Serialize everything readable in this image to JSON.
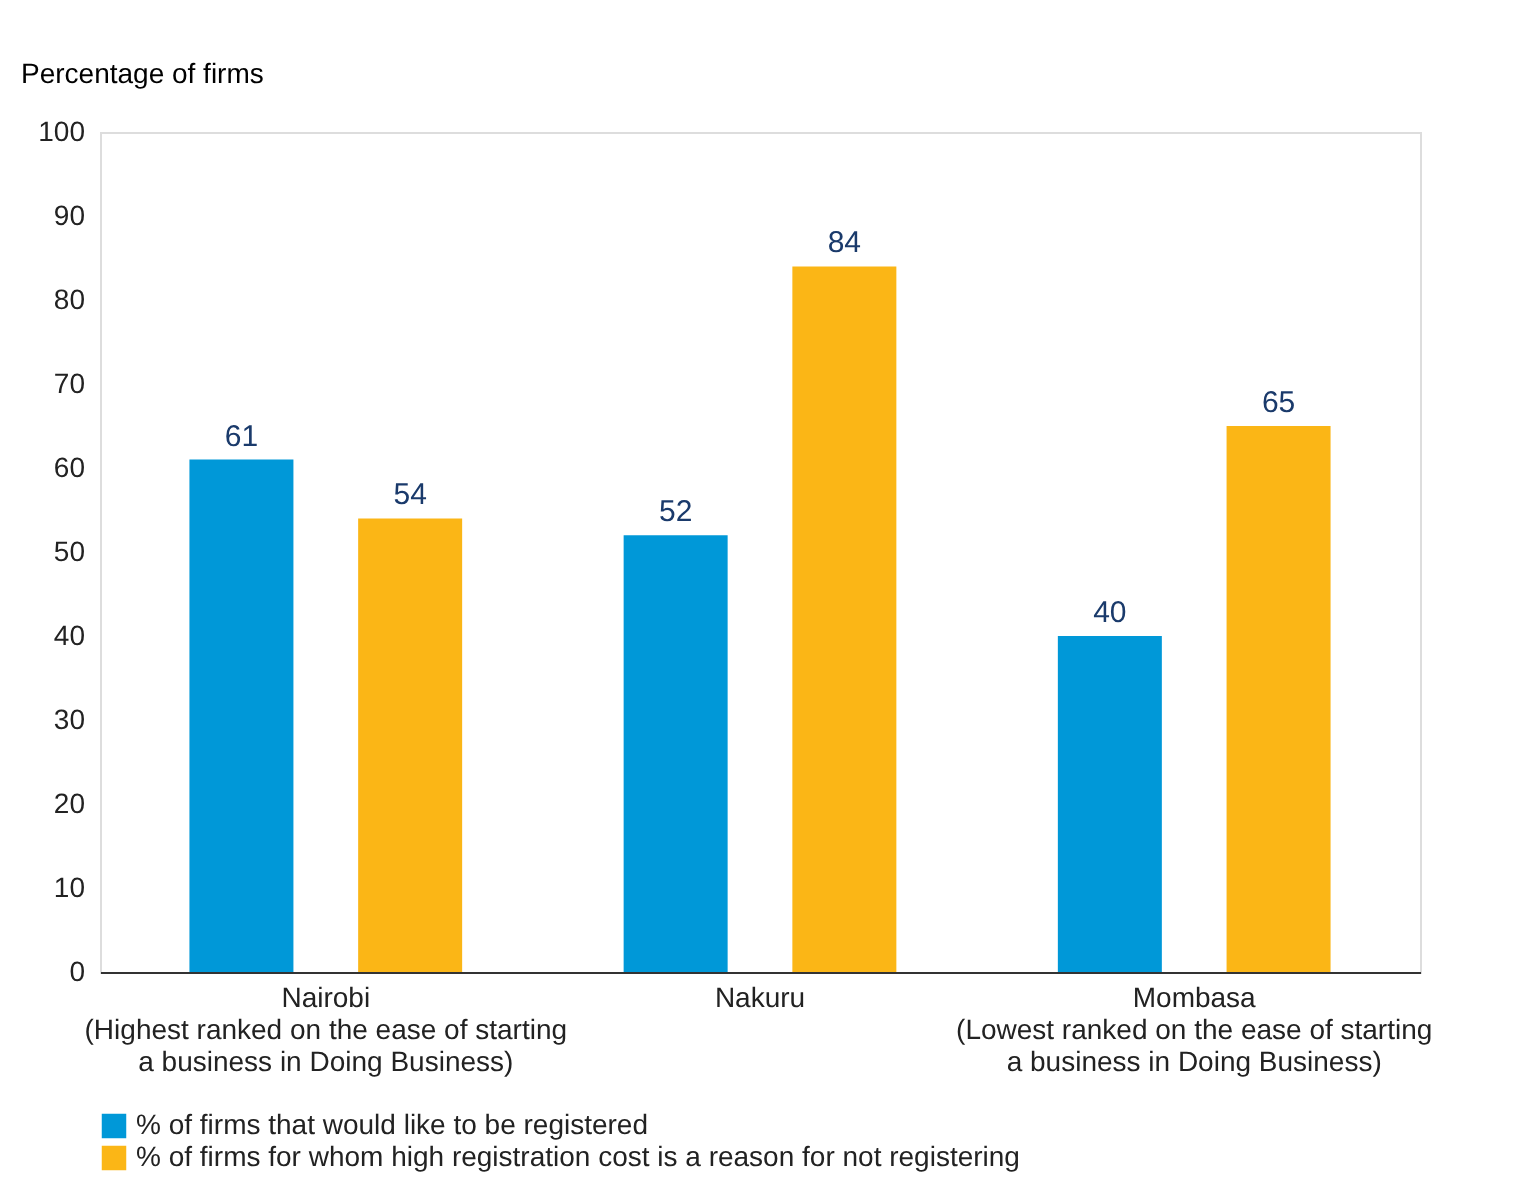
{
  "chart_data": {
    "type": "bar",
    "ylabel": "Percentage of firms",
    "categories": [
      "Nairobi\n(Highest ranked on the ease of starting\na business in Doing Business)",
      "Nakuru",
      "Mombasa\n(Lowest ranked on the ease of starting\na business in Doing Business)"
    ],
    "series": [
      {
        "name": "% of firms that would like to be registered",
        "color": "#0098d8",
        "values": [
          61,
          52,
          40
        ]
      },
      {
        "name": "% of firms for whom high registration cost is a reason for not registering",
        "color": "#fbb616",
        "values": [
          54,
          84,
          65
        ]
      }
    ],
    "ylim": [
      0,
      100
    ],
    "yticks": [
      0,
      10,
      20,
      30,
      40,
      50,
      60,
      70,
      80,
      90,
      100
    ],
    "grid": false,
    "legend": "bottom",
    "data_labels": true
  }
}
